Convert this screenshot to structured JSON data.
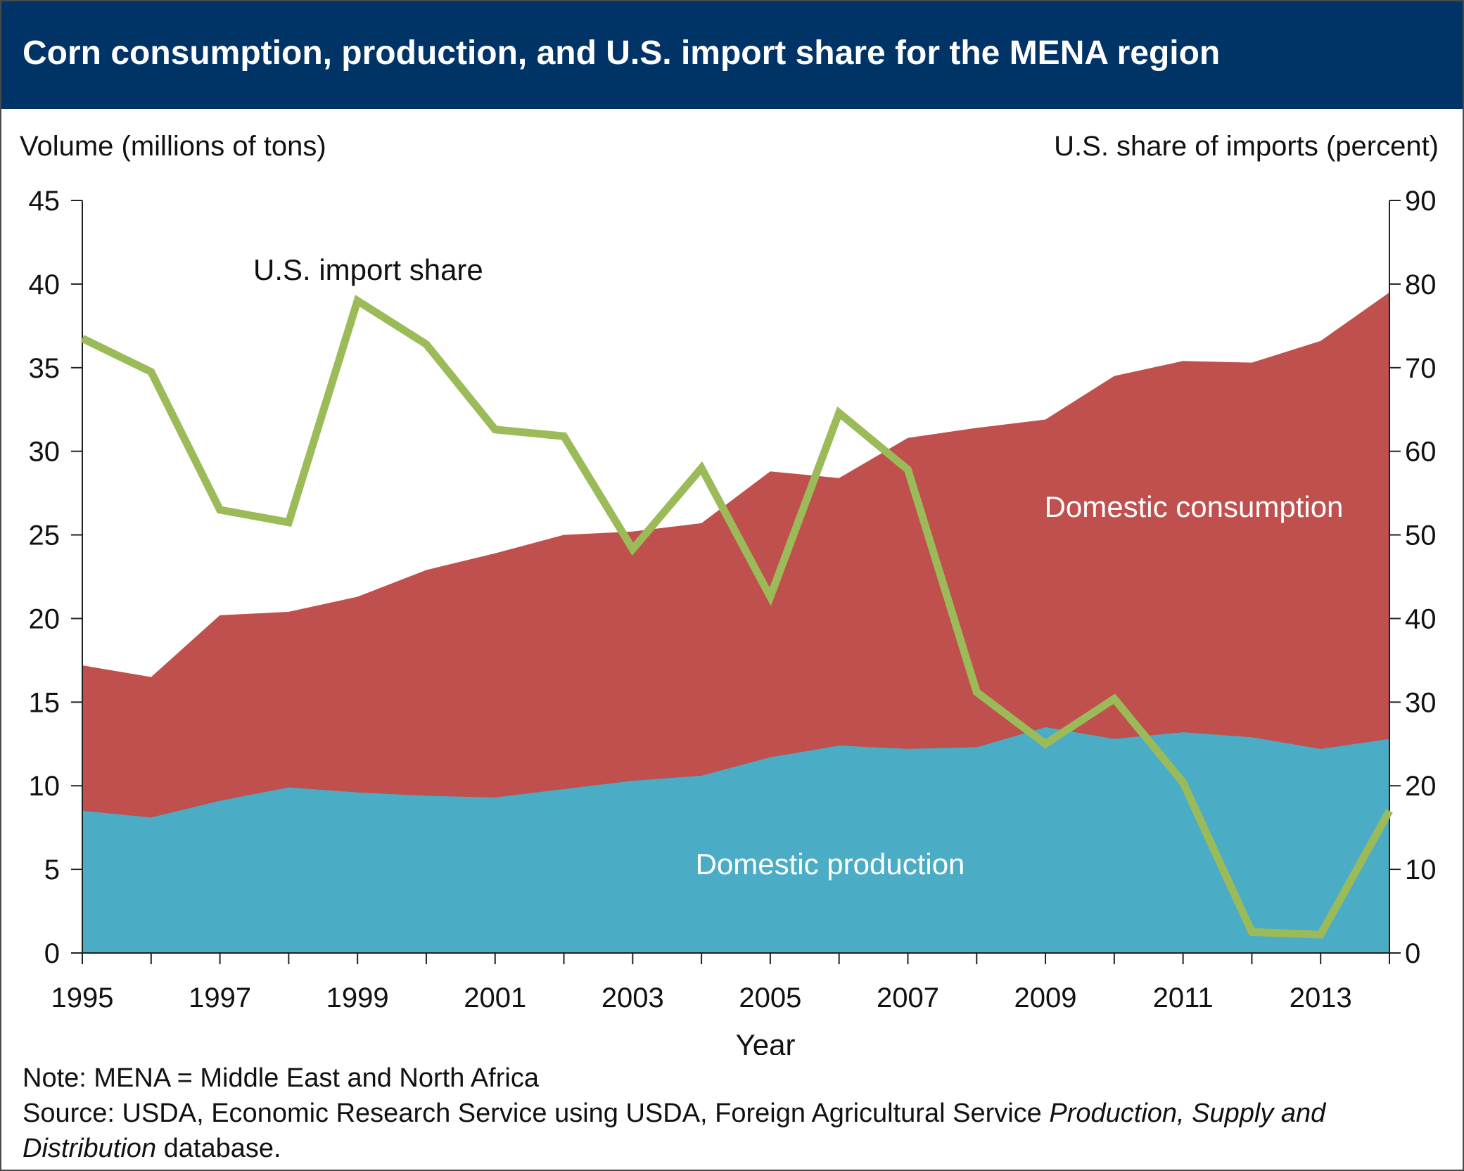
{
  "header": {
    "title": "Corn consumption, production, and U.S. import share for the MENA region"
  },
  "chart_data": {
    "type": "area",
    "x": [
      1995,
      1996,
      1997,
      1998,
      1999,
      2000,
      2001,
      2002,
      2003,
      2004,
      2005,
      2006,
      2007,
      2008,
      2009,
      2010,
      2011,
      2012,
      2013,
      2014
    ],
    "xlabel": "Year",
    "x_tick_labels": [
      "1995",
      "1997",
      "1999",
      "2001",
      "2003",
      "2005",
      "2007",
      "2009",
      "2011",
      "2013"
    ],
    "y_left_label": "Volume (millions of tons)",
    "y_left_lim": [
      0,
      45
    ],
    "y_left_ticks": [
      "0",
      "5",
      "10",
      "15",
      "20",
      "25",
      "30",
      "35",
      "40",
      "45"
    ],
    "y_right_label": "U.S. share of imports (percent)",
    "y_right_lim": [
      0,
      90
    ],
    "y_right_ticks": [
      "0",
      "10",
      "20",
      "30",
      "40",
      "50",
      "60",
      "70",
      "80",
      "90"
    ],
    "series": [
      {
        "name": "Domestic consumption",
        "kind": "area",
        "axis": "left",
        "color": "#c0504d",
        "values": [
          17.2,
          16.5,
          20.2,
          20.4,
          21.3,
          22.9,
          23.9,
          25.0,
          25.2,
          25.7,
          28.8,
          28.4,
          30.8,
          31.4,
          31.9,
          34.5,
          35.4,
          35.3,
          36.6,
          39.5
        ]
      },
      {
        "name": "Domestic production",
        "kind": "area",
        "axis": "left",
        "color": "#4bacc6",
        "values": [
          8.5,
          8.1,
          9.1,
          9.9,
          9.6,
          9.4,
          9.3,
          9.8,
          10.3,
          10.6,
          11.7,
          12.4,
          12.2,
          12.3,
          13.5,
          12.8,
          13.2,
          12.9,
          12.2,
          12.8
        ]
      },
      {
        "name": "U.S. import share",
        "kind": "line",
        "axis": "right",
        "color": "#9bbb59",
        "values": [
          73.5,
          69.5,
          53.0,
          51.5,
          78.0,
          72.8,
          62.6,
          61.8,
          48.3,
          58.0,
          42.6,
          64.6,
          57.8,
          31.2,
          25.0,
          30.4,
          20.4,
          2.5,
          2.2,
          17.0
        ]
      }
    ]
  },
  "footer": {
    "note": "Note: MENA = Middle East and North Africa",
    "source_prefix": "Source: USDA, Economic Research Service using USDA, Foreign Agricultural Service ",
    "source_italic_1": "Production, Supply and",
    "source_italic_2": "Distribution",
    "source_suffix": " database."
  }
}
